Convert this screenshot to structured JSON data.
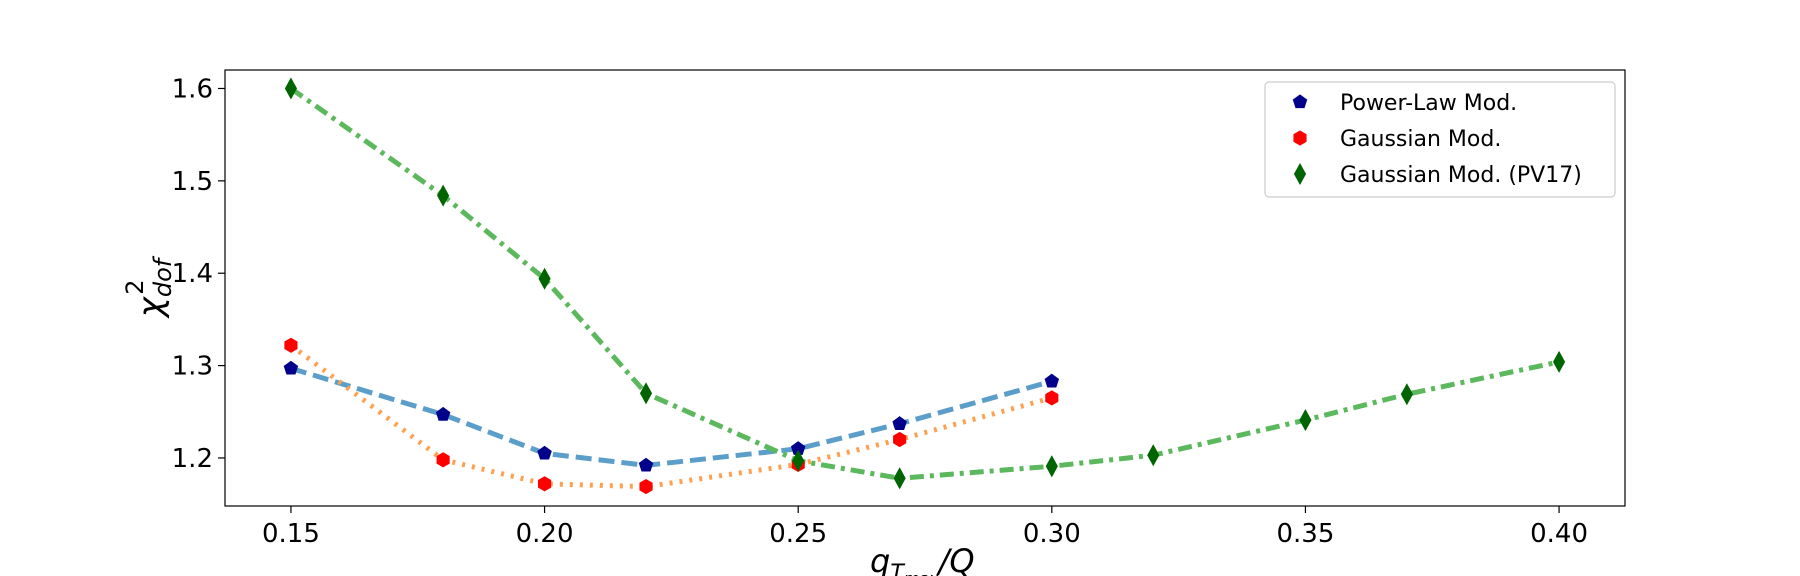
{
  "chart_data": {
    "type": "line",
    "xlabel": {
      "main": "q",
      "sub": "T",
      "subsub": "max",
      "rest": "/Q"
    },
    "ylabel": {
      "main": "χ",
      "sup": "2",
      "sub": "dof"
    },
    "xlim": [
      0.137,
      0.413
    ],
    "ylim": [
      1.148,
      1.62
    ],
    "xticks": [
      0.15,
      0.2,
      0.25,
      0.3,
      0.35,
      0.4
    ],
    "xtick_labels": [
      "0.15",
      "0.20",
      "0.25",
      "0.30",
      "0.35",
      "0.40"
    ],
    "yticks": [
      1.2,
      1.3,
      1.4,
      1.5,
      1.6
    ],
    "ytick_labels": [
      "1.2",
      "1.3",
      "1.4",
      "1.5",
      "1.6"
    ],
    "legend_position": "top-right",
    "series": [
      {
        "name": "Power-Law Mod.",
        "line_color": "#5b9ec9",
        "marker_color": "#00008b",
        "marker": "pentagon",
        "dash": "dashed",
        "x": [
          0.15,
          0.18,
          0.2,
          0.22,
          0.25,
          0.27,
          0.3
        ],
        "y": [
          1.297,
          1.247,
          1.205,
          1.192,
          1.21,
          1.237,
          1.283
        ]
      },
      {
        "name": "Gaussian Mod.",
        "line_color": "#ffa050",
        "marker_color": "#ff0000",
        "marker": "hexagon",
        "dash": "dotted",
        "x": [
          0.15,
          0.18,
          0.2,
          0.22,
          0.25,
          0.27,
          0.3
        ],
        "y": [
          1.322,
          1.198,
          1.172,
          1.169,
          1.193,
          1.22,
          1.265
        ]
      },
      {
        "name": "Gaussian Mod. (PV17)",
        "line_color": "#5cb85c",
        "marker_color": "#006400",
        "marker": "thin_diamond",
        "dash": "dashdot",
        "x": [
          0.15,
          0.18,
          0.2,
          0.22,
          0.25,
          0.27,
          0.3,
          0.32,
          0.35,
          0.37,
          0.4
        ],
        "y": [
          1.6,
          1.484,
          1.394,
          1.27,
          1.197,
          1.178,
          1.191,
          1.203,
          1.241,
          1.269,
          1.304
        ]
      }
    ]
  }
}
